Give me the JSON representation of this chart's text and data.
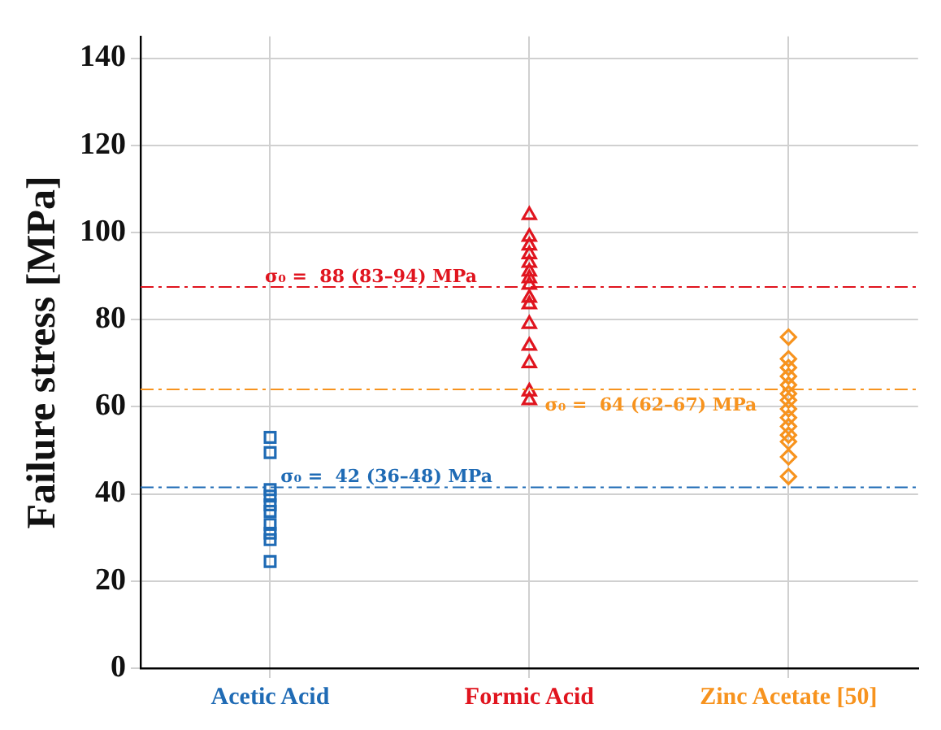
{
  "chart_data": {
    "type": "scatter",
    "ylabel": "Failure stress [MPa]",
    "categories": [
      "Acetic Acid",
      "Formic Acid",
      "Zinc Acetate [50]"
    ],
    "ylim": [
      0,
      145
    ],
    "yticks": [
      0,
      20,
      40,
      60,
      80,
      100,
      120,
      140
    ],
    "grid": true,
    "series": [
      {
        "x": [
          "Acetic Acid",
          "Acetic Acid",
          "Acetic Acid",
          "Acetic Acid",
          "Acetic Acid",
          "Acetic Acid",
          "Acetic Acid",
          "Acetic Acid",
          "Acetic Acid",
          "Acetic Acid"
        ],
        "values": [
          53,
          49.5,
          41,
          39.5,
          37.5,
          36,
          33,
          31,
          29.5,
          24.5
        ],
        "color": "#1f6bb5",
        "marker": "square"
      },
      {
        "x": [
          "Formic Acid",
          "Formic Acid",
          "Formic Acid",
          "Formic Acid",
          "Formic Acid",
          "Formic Acid",
          "Formic Acid",
          "Formic Acid",
          "Formic Acid",
          "Formic Acid",
          "Formic Acid",
          "Formic Acid",
          "Formic Acid",
          "Formic Acid",
          "Formic Acid"
        ],
        "values": [
          104,
          99,
          97,
          95,
          93,
          91,
          89.5,
          88,
          85,
          83.5,
          79,
          74,
          70,
          63.5,
          61.5
        ],
        "color": "#e0141e",
        "marker": "triangle"
      },
      {
        "x": [
          "Zinc Acetate [50]",
          "Zinc Acetate [50]",
          "Zinc Acetate [50]",
          "Zinc Acetate [50]",
          "Zinc Acetate [50]",
          "Zinc Acetate [50]",
          "Zinc Acetate [50]",
          "Zinc Acetate [50]",
          "Zinc Acetate [50]",
          "Zinc Acetate [50]",
          "Zinc Acetate [50]",
          "Zinc Acetate [50]",
          "Zinc Acetate [50]",
          "Zinc Acetate [50]"
        ],
        "values": [
          76,
          71,
          69,
          67,
          65,
          63,
          61.5,
          59.5,
          57.5,
          55.5,
          53.5,
          52,
          48.5,
          44
        ],
        "color": "#f7931e",
        "marker": "diamond"
      }
    ],
    "ref_lines": [
      {
        "axis": "y",
        "value": 87.5,
        "label": "σ₀ =  88 (83–94) MPa",
        "color": "#e0141e",
        "line_style": "dashdot"
      },
      {
        "axis": "y",
        "value": 64,
        "label": "σ₀ =  64 (62–67) MPa",
        "color": "#f7931e",
        "line_style": "dashdot"
      },
      {
        "axis": "y",
        "value": 41.5,
        "label": "σ₀ =  42 (36–48) MPa",
        "color": "#1f6bb5",
        "line_style": "dashdot"
      }
    ]
  }
}
